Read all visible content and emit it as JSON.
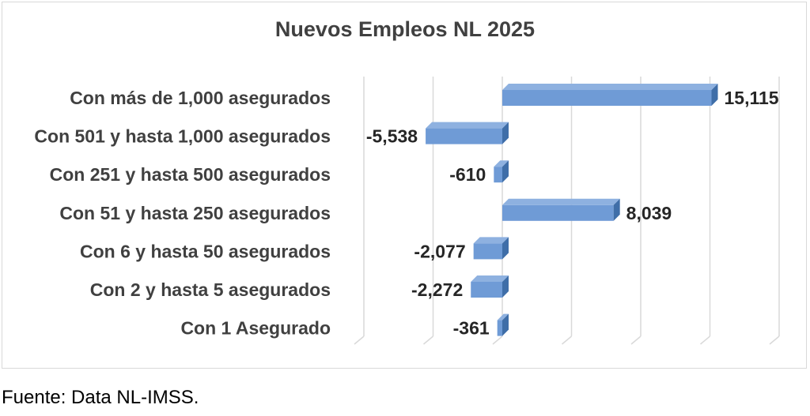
{
  "chart_data": {
    "type": "bar",
    "orientation": "horizontal",
    "title": "Nuevos Empleos NL 2025",
    "categories": [
      "Con más de 1,000 asegurados",
      "Con 501 y hasta 1,000 asegurados",
      "Con 251 y hasta 500 asegurados",
      "Con 51 y hasta 250 asegurados",
      "Con 6 y hasta 50 asegurados",
      "Con 2 y hasta 5 asegurados",
      "Con 1 Asegurado"
    ],
    "values": [
      15115,
      -5538,
      -610,
      8039,
      -2077,
      -2272,
      -361
    ],
    "value_labels": [
      "15,115",
      "-5,538",
      "-610",
      "8,039",
      "-2,077",
      "-2,272",
      "-361"
    ],
    "xlim": [
      -10000,
      20000
    ],
    "grid": true,
    "legend": false,
    "colors": {
      "bar_front": "#6f9bd6",
      "bar_top": "#8eb1e0",
      "bar_side": "#3f6ea8",
      "grid": "#d9d9d9"
    }
  },
  "source": "Fuente: Data NL-IMSS."
}
